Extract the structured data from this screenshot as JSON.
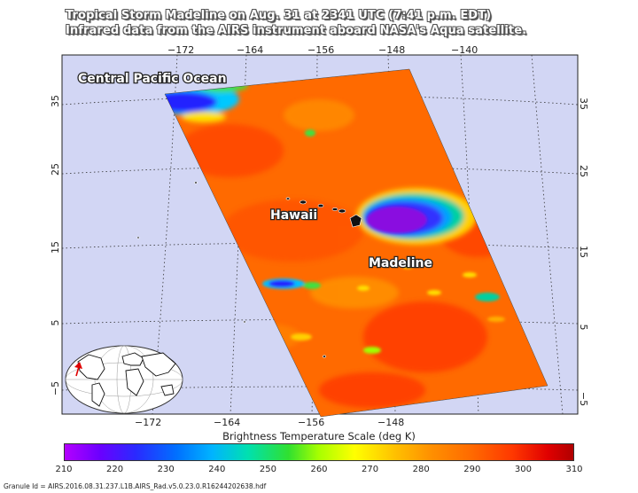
{
  "title": {
    "line1": "Tropical Storm Madeline on Aug. 31 at 2341 UTC (7:41 p.m. EDT)",
    "line2": "Infrared data from the AIRS instrument aboard NASA's Aqua satellite."
  },
  "map": {
    "top_lon_ticks": [
      "−172",
      "−164",
      "−156",
      "−148",
      "−140"
    ],
    "bottom_lon_ticks": [
      "−172",
      "−164",
      "−156",
      "−148"
    ],
    "left_lat_ticks": [
      "35",
      "25",
      "15",
      "5",
      "−5"
    ],
    "right_lat_ticks": [
      "35",
      "25",
      "15",
      "5",
      "−5"
    ],
    "labels": {
      "ocean": "Central Pacific Ocean",
      "hawaii": "Hawaii",
      "storm": "Madeline"
    },
    "colors": {
      "ocean_background": "#d2d6f4",
      "swath_warm": "#ff6a00",
      "swath_hot": "#ff3c00",
      "cold_cloud_top": "#8a10e0"
    }
  },
  "colorbar": {
    "title": "Brightness Temperature Scale (deg K)",
    "ticks": [
      "210",
      "220",
      "230",
      "240",
      "250",
      "260",
      "270",
      "280",
      "290",
      "300",
      "310"
    ],
    "min": 210,
    "max": 310
  },
  "granule": "Granule Id = AIRS.2016.08.31.237.L1B.AIRS_Rad.v5.0.23.0.R16244202638.hdf"
}
